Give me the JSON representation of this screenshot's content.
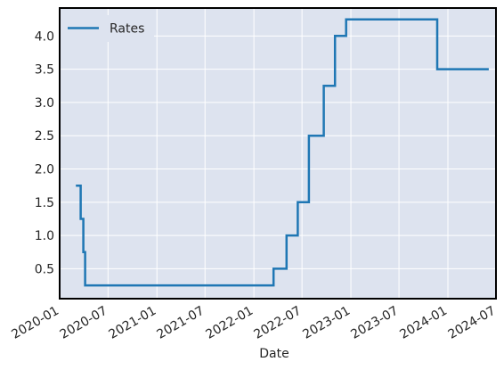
{
  "chart_data": {
    "type": "line",
    "title": "",
    "xlabel": "Date",
    "ylabel": "",
    "x_axis_type": "date",
    "xlim": [
      "2020-01-01",
      "2024-06-30"
    ],
    "ylim": [
      0.05,
      4.42
    ],
    "x_ticks": [
      "2020-01",
      "2020-07",
      "2021-01",
      "2021-07",
      "2022-01",
      "2022-07",
      "2023-01",
      "2023-07",
      "2024-01",
      "2024-07"
    ],
    "y_ticks": [
      0.5,
      1.0,
      1.5,
      2.0,
      2.5,
      3.0,
      3.5,
      4.0
    ],
    "y_tick_labels": [
      "0.5",
      "1.0",
      "1.5",
      "2.0",
      "2.5",
      "3.0",
      "3.5",
      "4.0"
    ],
    "grid": true,
    "legend_position": "top-left",
    "step": "post",
    "series": [
      {
        "name": "Rates",
        "color": "#1f77b4",
        "points": [
          [
            "2020-03-02",
            1.75
          ],
          [
            "2020-03-20",
            1.25
          ],
          [
            "2020-03-30",
            0.75
          ],
          [
            "2020-04-06",
            0.25
          ],
          [
            "2022-03-16",
            0.5
          ],
          [
            "2022-05-04",
            1.0
          ],
          [
            "2022-06-15",
            1.5
          ],
          [
            "2022-07-27",
            2.5
          ],
          [
            "2022-09-21",
            3.25
          ],
          [
            "2022-11-02",
            4.0
          ],
          [
            "2022-12-14",
            4.25
          ],
          [
            "2023-11-22",
            3.5
          ],
          [
            "2024-06-03",
            3.5
          ]
        ]
      }
    ]
  }
}
